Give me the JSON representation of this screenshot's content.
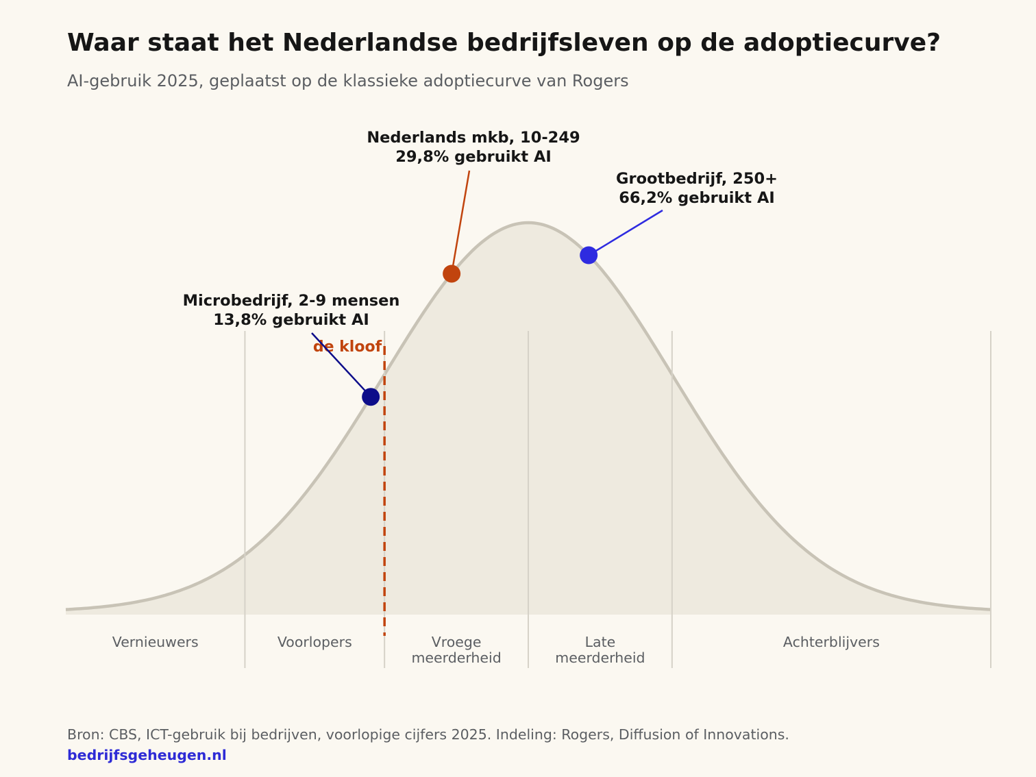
{
  "header": {
    "title": "Waar staat het Nederlandse bedrijfsleven op de adoptiecurve?",
    "subtitle": "AI-gebruik 2025, geplaatst op de klassieke adoptiecurve van Rogers"
  },
  "chart_data": {
    "type": "area",
    "curve": "normal distribution (Rogers adoption curve)",
    "x_unit": "cumulative adoption (%)",
    "segments": [
      {
        "name": "Vernieuwers",
        "lines": [
          "Vernieuwers"
        ],
        "start": 0,
        "end": 2.5
      },
      {
        "name": "Voorlopers",
        "lines": [
          "Voorlopers"
        ],
        "start": 2.5,
        "end": 16
      },
      {
        "name": "Vroege meerderheid",
        "lines": [
          "Vroege",
          "meerderheid"
        ],
        "start": 16,
        "end": 50
      },
      {
        "name": "Late meerderheid",
        "lines": [
          "Late",
          "meerderheid"
        ],
        "start": 50,
        "end": 84
      },
      {
        "name": "Achterblijvers",
        "lines": [
          "Achterblijvers"
        ],
        "start": 84,
        "end": 100
      }
    ],
    "chasm": {
      "label": "de kloof",
      "at": 16
    },
    "points": [
      {
        "id": "micro",
        "label_lines": [
          "Microbedrijf, 2-9 mensen",
          "13,8% gebruikt AI"
        ],
        "adoption": 13.8,
        "color": "#0d0d8a"
      },
      {
        "id": "mkb",
        "label_lines": [
          "Nederlands mkb, 10-249",
          "29,8% gebruikt AI"
        ],
        "adoption": 29.8,
        "color": "#c1440e"
      },
      {
        "id": "groot",
        "label_lines": [
          "Grootbedrijf, 250+",
          "66,2% gebruikt AI"
        ],
        "adoption": 66.2,
        "color": "#2e2be0"
      }
    ],
    "colors": {
      "curve_line": "#c8c3b6",
      "curve_fill": "#eeeadf",
      "divider": "#d6d2c8",
      "chasm": "#c1440e",
      "segment_label": "#5b5e62",
      "annotation_text": "#161616"
    }
  },
  "footer": {
    "source": "Bron: CBS, ICT-gebruik bij bedrijven, voorlopige cijfers 2025. Indeling: Rogers, Diffusion of Innovations.",
    "link": "bedrijfsgeheugen.nl"
  }
}
